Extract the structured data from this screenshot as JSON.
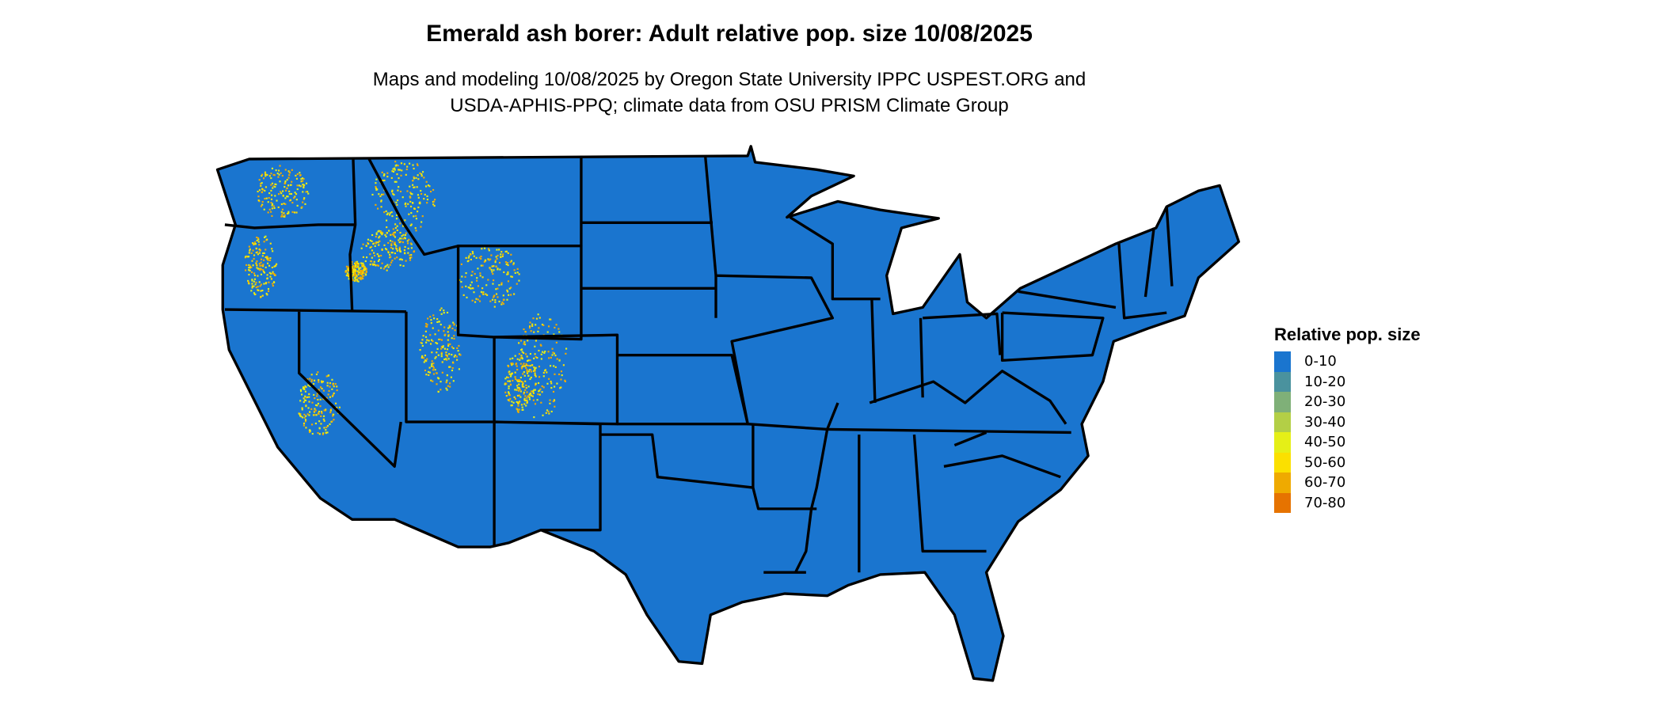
{
  "title": "Emerald ash borer: Adult relative pop. size 10/08/2025",
  "subtitle_lines": [
    "Maps and modeling 10/08/2025 by Oregon State University IPPC USPEST.ORG and",
    "USDA-APHIS-PPQ; climate data from OSU PRISM Climate Group"
  ],
  "map": {
    "region": "Contiguous United States",
    "base_fill": "#1a75cf",
    "state_border_color": "#000000",
    "dominant_class": "0-10",
    "hotspot_classes": [
      "40-50",
      "50-60",
      "60-70"
    ],
    "hotspot_regions": "Rocky Mountains, Cascades, Sierra Nevada"
  },
  "legend": {
    "title": "Relative pop. size",
    "items": [
      {
        "label": "0-10",
        "color": "#1a75cf"
      },
      {
        "label": "10-20",
        "color": "#4a929e"
      },
      {
        "label": "20-30",
        "color": "#7fb078"
      },
      {
        "label": "30-40",
        "color": "#b3cf46"
      },
      {
        "label": "40-50",
        "color": "#e5ef17"
      },
      {
        "label": "50-60",
        "color": "#fbe000"
      },
      {
        "label": "60-70",
        "color": "#efaa00"
      },
      {
        "label": "70-80",
        "color": "#e67300"
      }
    ]
  }
}
